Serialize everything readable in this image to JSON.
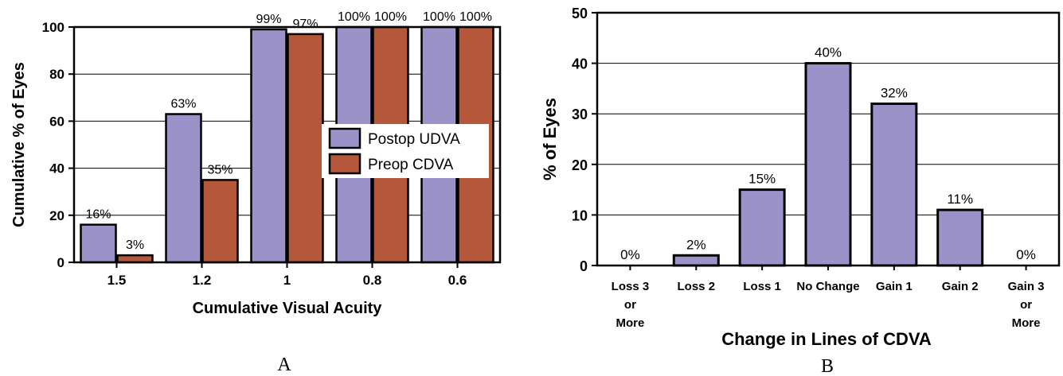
{
  "chart_data": [
    {
      "type": "bar",
      "panel_label": "A",
      "xlabel": "Cumulative Visual Acuity",
      "ylabel": "Cumulative % of Eyes",
      "ylim": [
        0,
        100
      ],
      "yticks": [
        "0",
        "20",
        "40",
        "60",
        "80",
        "100"
      ],
      "categories": [
        "1.5",
        "1.2",
        "1",
        "0.8",
        "0.6"
      ],
      "series": [
        {
          "name": "Postop UDVA",
          "color": "#9b92c9",
          "values": [
            16,
            63,
            99,
            100,
            100
          ],
          "labels": [
            "16%",
            "63%",
            "99%",
            "100%",
            "100%"
          ]
        },
        {
          "name": "Preop CDVA",
          "color": "#b5573a",
          "values": [
            3,
            35,
            97,
            100,
            100
          ],
          "labels": [
            "3%",
            "35%",
            "97%",
            "100%",
            "100%"
          ]
        }
      ],
      "legend": "center-right",
      "grid": "horizontal"
    },
    {
      "type": "bar",
      "panel_label": "B",
      "xlabel": "Change in Lines of CDVA",
      "ylabel": "% of Eyes",
      "ylim": [
        0,
        50
      ],
      "yticks": [
        "0",
        "10",
        "20",
        "30",
        "40",
        "50"
      ],
      "categories": [
        [
          "Loss 3",
          "or",
          "More"
        ],
        [
          "Loss 2"
        ],
        [
          "Loss 1"
        ],
        [
          "No Change"
        ],
        [
          "Gain 1"
        ],
        [
          "Gain 2"
        ],
        [
          "Gain 3",
          "or",
          "More"
        ]
      ],
      "series": [
        {
          "color": "#9b92c9",
          "values": [
            0,
            2,
            15,
            40,
            32,
            11,
            0
          ],
          "labels": [
            "0%",
            "2%",
            "15%",
            "40%",
            "32%",
            "11%",
            "0%"
          ]
        }
      ],
      "grid": "horizontal"
    }
  ]
}
